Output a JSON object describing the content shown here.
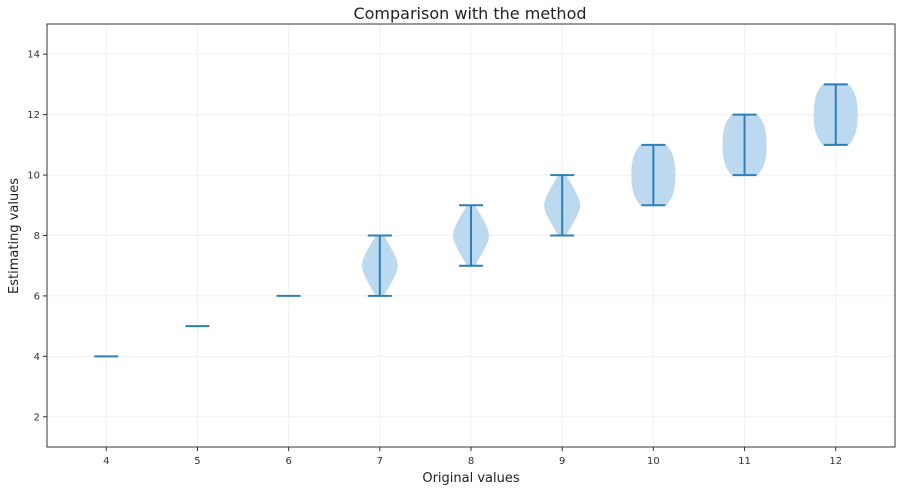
{
  "chart_data": {
    "type": "violin",
    "title": "Comparison with the method",
    "xlabel": "Original values",
    "ylabel": "Estimating values",
    "categories": [
      "4",
      "5",
      "6",
      "7",
      "8",
      "9",
      "10",
      "11",
      "12"
    ],
    "x": [
      4,
      5,
      6,
      7,
      8,
      9,
      10,
      11,
      12
    ],
    "min": [
      4,
      5,
      6,
      6,
      7,
      8,
      9,
      10,
      11
    ],
    "max": [
      4,
      5,
      6,
      8,
      9,
      10,
      11,
      12,
      13
    ],
    "center": [
      4,
      5,
      6,
      7,
      8,
      9,
      10,
      11,
      12
    ],
    "shape": [
      "line",
      "line",
      "line",
      "diamond",
      "diamond",
      "diamond",
      "oval",
      "oval",
      "oval"
    ],
    "xlim": [
      3.35,
      12.65
    ],
    "ylim": [
      1,
      15
    ],
    "yticks": [
      2,
      4,
      6,
      8,
      10,
      12,
      14
    ],
    "grid": true,
    "colors": {
      "fill": "#b9d7ef",
      "line": "#2c7fb8",
      "axis": "#333333",
      "grid": "#f0f0f0"
    }
  }
}
